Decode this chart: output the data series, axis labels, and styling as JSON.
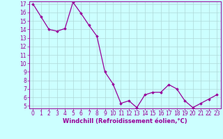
{
  "x": [
    0,
    1,
    2,
    3,
    4,
    5,
    6,
    7,
    8,
    9,
    10,
    11,
    12,
    13,
    14,
    15,
    16,
    17,
    18,
    19,
    20,
    21,
    22,
    23
  ],
  "y": [
    17.0,
    15.5,
    14.0,
    13.8,
    14.1,
    17.2,
    15.9,
    14.5,
    13.2,
    9.0,
    7.6,
    5.3,
    5.6,
    4.8,
    6.3,
    6.6,
    6.6,
    7.5,
    7.0,
    5.6,
    4.8,
    5.3,
    5.8,
    6.3
  ],
  "line_color": "#990099",
  "marker": "D",
  "marker_size": 1.8,
  "bg_color": "#ccffff",
  "grid_color": "#b0d8d8",
  "xlabel": "Windchill (Refroidissement éolien,°C)",
  "xlabel_color": "#990099",
  "tick_color": "#990099",
  "ylim_min": 5,
  "ylim_max": 17,
  "xlim_min": 0,
  "xlim_max": 23,
  "yticks": [
    5,
    6,
    7,
    8,
    9,
    10,
    11,
    12,
    13,
    14,
    15,
    16,
    17
  ],
  "xticks": [
    0,
    1,
    2,
    3,
    4,
    5,
    6,
    7,
    8,
    9,
    10,
    11,
    12,
    13,
    14,
    15,
    16,
    17,
    18,
    19,
    20,
    21,
    22,
    23
  ],
  "tick_fontsize": 5.5,
  "xlabel_fontsize": 6.0,
  "linewidth": 0.9
}
